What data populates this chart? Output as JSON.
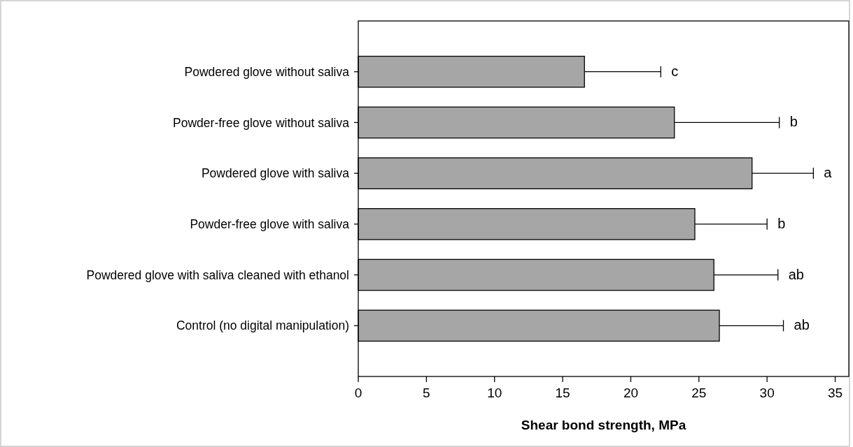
{
  "chart_data": {
    "type": "bar",
    "orientation": "horizontal",
    "xlabel": "Shear bond strength, MPa",
    "categories": [
      "Powdered glove without saliva",
      "Powder-free glove without saliva",
      "Powdered glove with saliva",
      "Powder-free glove with saliva",
      "Powdered glove with saliva cleaned with ethanol",
      "Control (no digital manipulation)"
    ],
    "series": [
      {
        "color": "#a6a6a6",
        "values": [
          16.6,
          23.2,
          28.9,
          24.7,
          26.1,
          26.5
        ],
        "errors": [
          [
            16.6,
            22.2
          ],
          [
            23.2,
            30.9
          ],
          [
            28.9,
            33.4
          ],
          [
            24.7,
            30.0
          ],
          [
            26.1,
            30.8
          ],
          [
            26.5,
            31.2
          ]
        ]
      }
    ],
    "xlim": [
      0,
      36
    ],
    "xticks": [
      0,
      5,
      10,
      15,
      20,
      25,
      30,
      35
    ],
    "grid": false,
    "annotations": [
      {
        "text": "c",
        "x": 22.2,
        "y": "Powdered glove without saliva"
      },
      {
        "text": "b",
        "x": 30.9,
        "y": "Powder-free glove without saliva"
      },
      {
        "text": "a",
        "x": 33.4,
        "y": "Powdered glove with saliva"
      },
      {
        "text": "b",
        "x": 30.0,
        "y": "Powder-free glove with saliva"
      },
      {
        "text": "ab",
        "x": 30.8,
        "y": "Powdered glove with saliva cleaned with ethanol"
      },
      {
        "text": "ab",
        "x": 31.2,
        "y": "Control (no digital manipulation)"
      }
    ]
  }
}
